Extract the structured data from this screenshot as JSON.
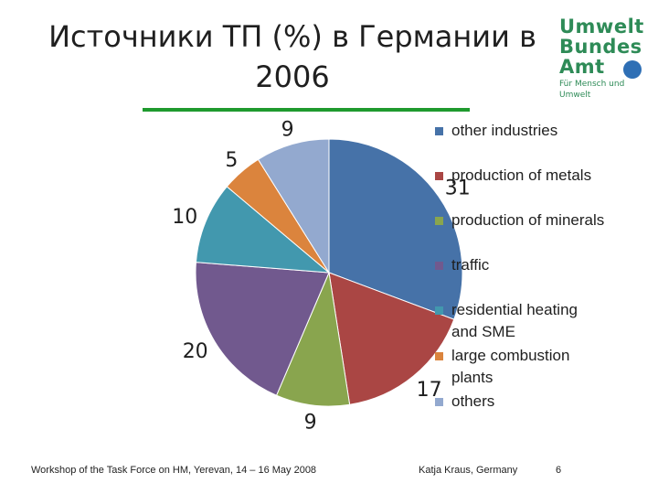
{
  "slide": {
    "title_line1": "Источники ТП (%) в Германии в",
    "title_line2": "2006",
    "footer_left": "Workshop of the Task Force on HM, Yerevan, 14 – 16 May 2008",
    "footer_mid": "Katja Kraus, Germany",
    "page_number": "6"
  },
  "logo": {
    "line1": "Umwelt",
    "line2": "Bundes",
    "line3": "Amt",
    "tagline": "Für Mensch und Umwelt"
  },
  "chart_data": {
    "type": "pie",
    "slices": [
      {
        "name": "other industries",
        "value": 31,
        "color": "#4672a8"
      },
      {
        "name": "production of metals",
        "value": 17,
        "color": "#aa4644"
      },
      {
        "name": "production of minerals",
        "value": 9,
        "color": "#89a54e"
      },
      {
        "name": "traffic",
        "value": 20,
        "color": "#71598e"
      },
      {
        "name": "residential heating and SME",
        "value": 10,
        "color": "#4298ae"
      },
      {
        "name": "large combustion plants",
        "value": 5,
        "color": "#db843d"
      },
      {
        "name": "others",
        "value": 9,
        "color": "#93a9cf"
      }
    ],
    "legend_lines": [
      [
        "other industries"
      ],
      [
        "production of metals"
      ],
      [
        "production of minerals"
      ],
      [
        "traffic"
      ],
      [
        "residential heating",
        "and SME"
      ],
      [
        "large combustion",
        "plants"
      ],
      [
        "others"
      ]
    ],
    "legend_placement": "right"
  }
}
